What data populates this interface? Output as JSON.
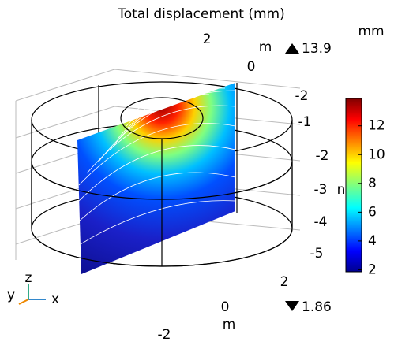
{
  "chart_data": {
    "type": "surface3d",
    "title": "Total displacement (mm)",
    "colorbar": {
      "unit": "mm",
      "min": 1.86,
      "max": 13.9,
      "ticks": [
        2,
        4,
        6,
        8,
        10,
        12
      ]
    },
    "axes": {
      "x_ticks": [
        "-2",
        "0",
        "2"
      ],
      "x_unit": "m",
      "y_ticks": [
        "2",
        "0",
        "-2"
      ],
      "y_unit": "m",
      "z_ticks": [
        "-1",
        "-2",
        "-3",
        "-4",
        "-5"
      ],
      "z_unit": "n"
    },
    "triad": [
      "y",
      "z",
      "x"
    ]
  }
}
